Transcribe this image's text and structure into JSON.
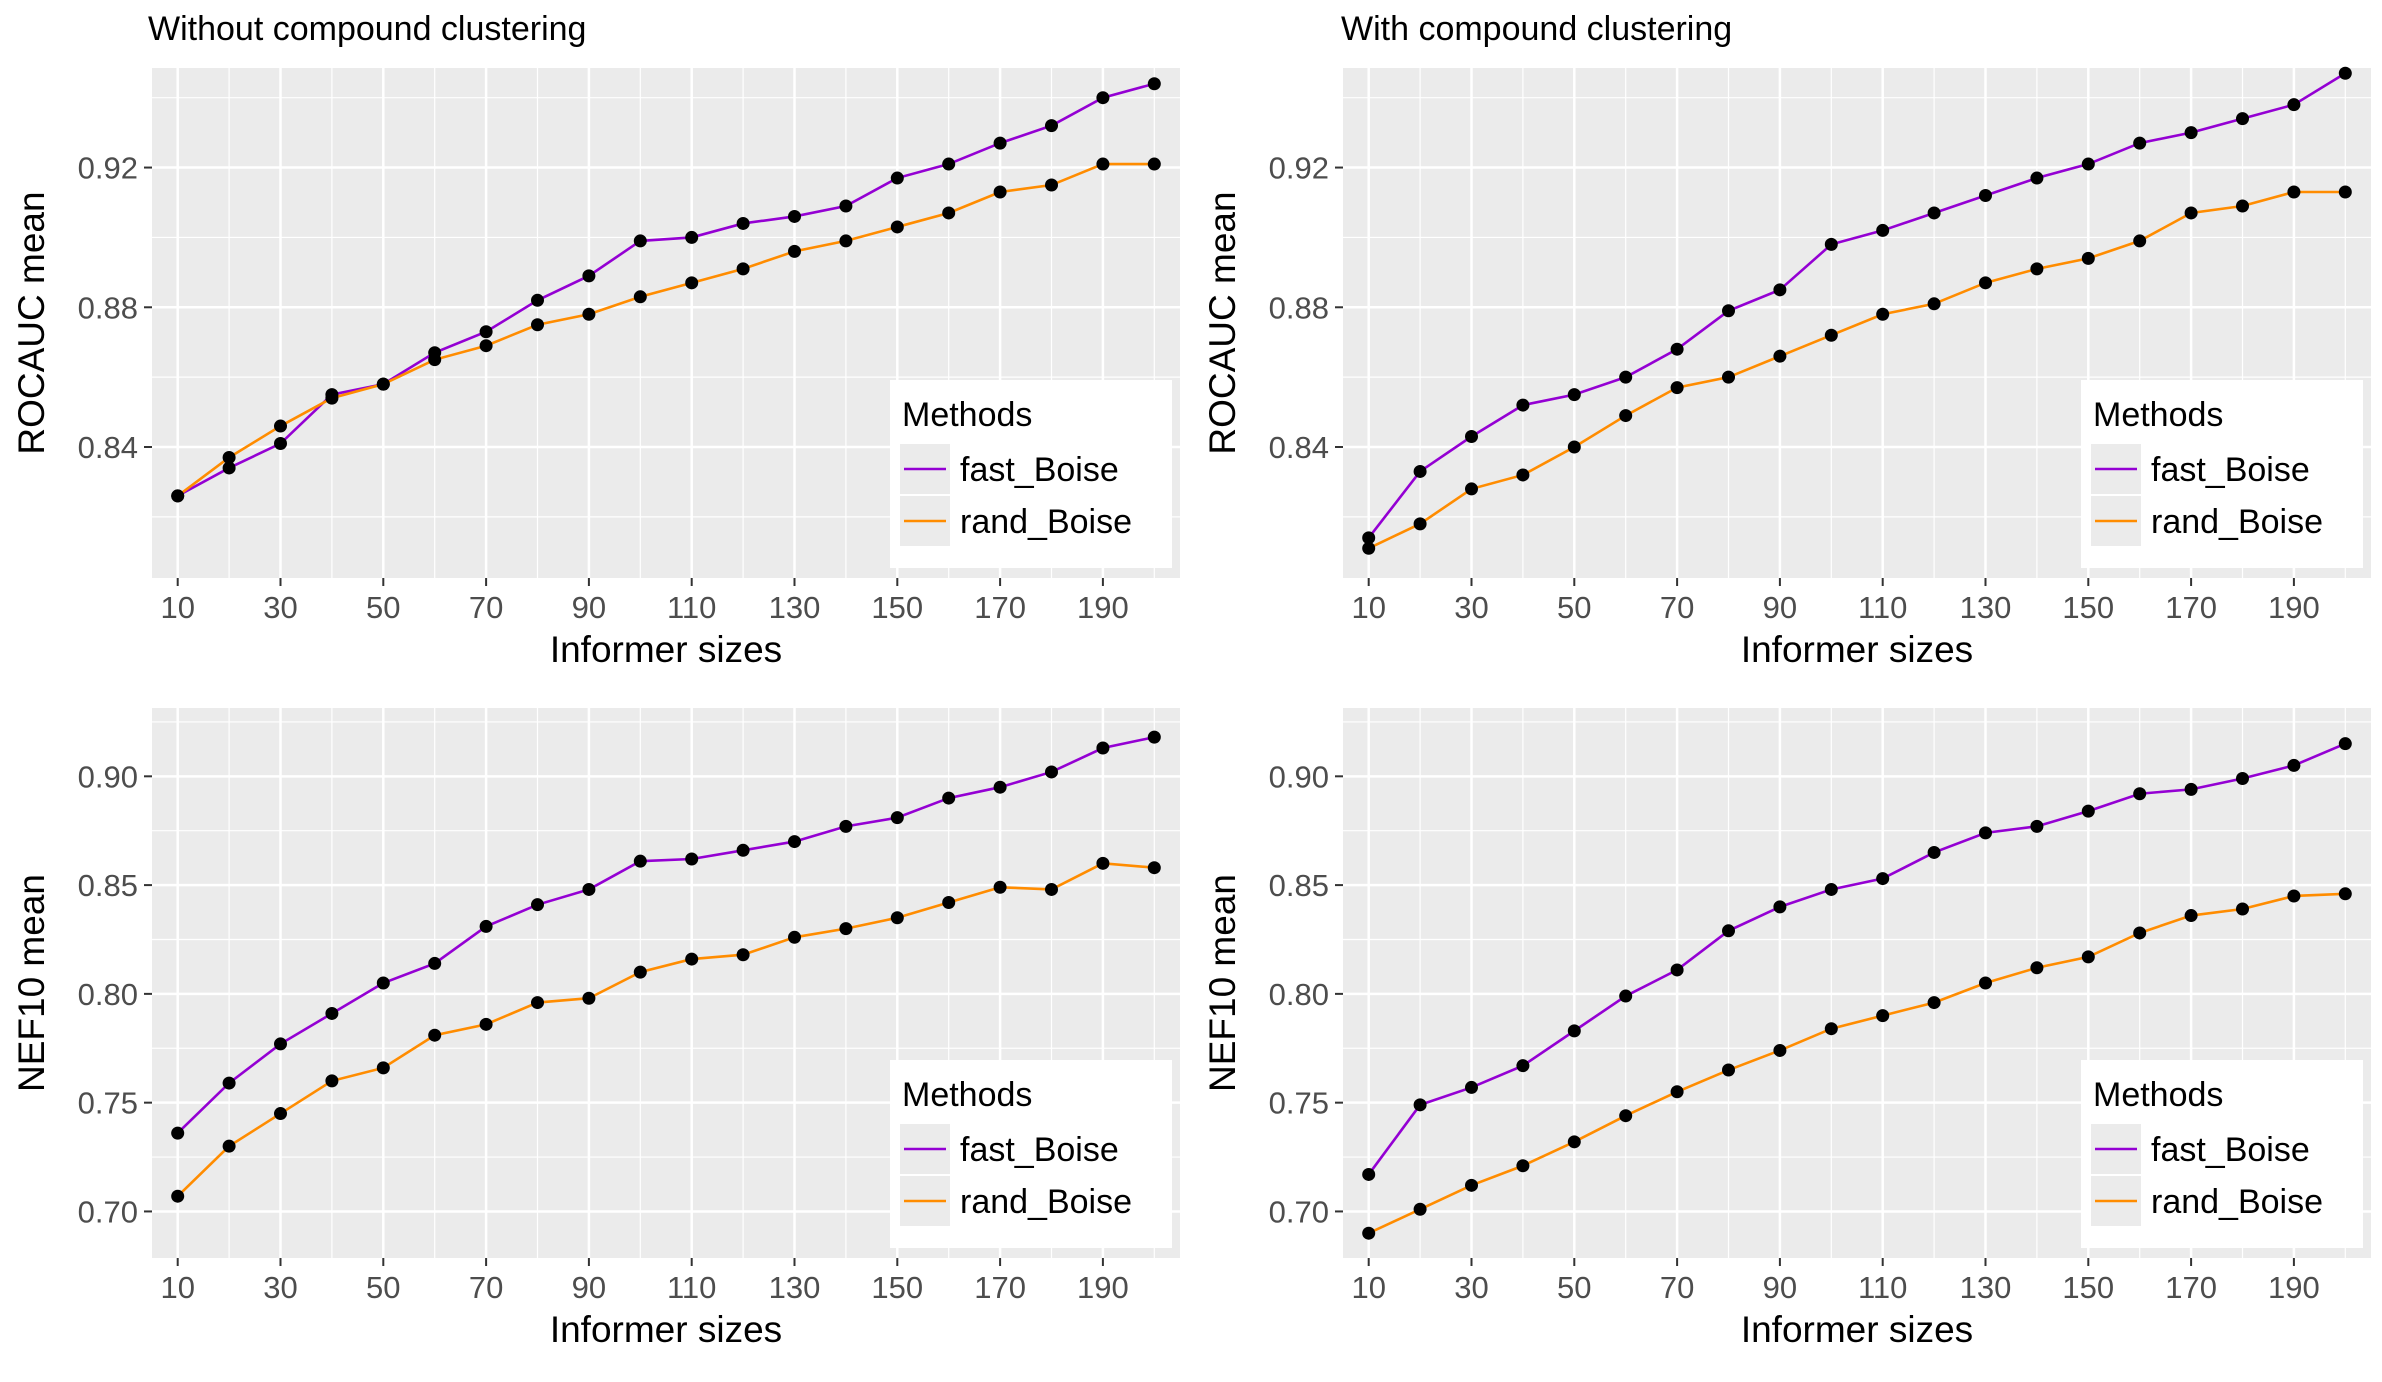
{
  "chart_data": [
    {
      "type": "line",
      "title": "Without compound clustering",
      "xlabel": "Informer sizes",
      "ylabel": "ROCAUC mean",
      "x": [
        10,
        20,
        30,
        40,
        50,
        60,
        70,
        80,
        90,
        100,
        110,
        120,
        130,
        140,
        150,
        160,
        170,
        180,
        190,
        200
      ],
      "x_ticks": [
        10,
        30,
        50,
        70,
        90,
        110,
        130,
        150,
        170,
        190
      ],
      "y_ticks": [
        "0.84",
        "0.88",
        "0.92"
      ],
      "ylim": [
        0.8025,
        0.9485
      ],
      "series": [
        {
          "name": "fast_Boise",
          "color": "#9400d3",
          "values": [
            0.826,
            0.834,
            0.841,
            0.855,
            0.858,
            0.867,
            0.873,
            0.882,
            0.889,
            0.899,
            0.9,
            0.904,
            0.906,
            0.909,
            0.917,
            0.921,
            0.927,
            0.932,
            0.94,
            0.944
          ]
        },
        {
          "name": "rand_Boise",
          "color": "#ff8c00",
          "values": [
            0.826,
            0.837,
            0.846,
            0.854,
            0.858,
            0.865,
            0.869,
            0.875,
            0.878,
            0.883,
            0.887,
            0.891,
            0.896,
            0.899,
            0.903,
            0.907,
            0.913,
            0.915,
            0.921,
            0.921
          ]
        }
      ],
      "legend": {
        "title": "Methods",
        "position": "bottom-right"
      },
      "grid": true
    },
    {
      "type": "line",
      "title": "With compound clustering",
      "xlabel": "Informer sizes",
      "ylabel": "ROCAUC mean",
      "x": [
        10,
        20,
        30,
        40,
        50,
        60,
        70,
        80,
        90,
        100,
        110,
        120,
        130,
        140,
        150,
        160,
        170,
        180,
        190,
        200
      ],
      "x_ticks": [
        10,
        30,
        50,
        70,
        90,
        110,
        130,
        150,
        170,
        190
      ],
      "y_ticks": [
        "0.84",
        "0.88",
        "0.92"
      ],
      "ylim": [
        0.8025,
        0.9485
      ],
      "series": [
        {
          "name": "fast_Boise",
          "color": "#9400d3",
          "values": [
            0.814,
            0.833,
            0.843,
            0.852,
            0.855,
            0.86,
            0.868,
            0.879,
            0.885,
            0.898,
            0.902,
            0.907,
            0.912,
            0.917,
            0.921,
            0.927,
            0.93,
            0.934,
            0.938,
            0.947
          ]
        },
        {
          "name": "rand_Boise",
          "color": "#ff8c00",
          "values": [
            0.811,
            0.818,
            0.828,
            0.832,
            0.84,
            0.849,
            0.857,
            0.86,
            0.866,
            0.872,
            0.878,
            0.881,
            0.887,
            0.891,
            0.894,
            0.899,
            0.907,
            0.909,
            0.913,
            0.913
          ]
        }
      ],
      "legend": {
        "title": "Methods",
        "position": "bottom-right"
      },
      "grid": true
    },
    {
      "type": "line",
      "title": "",
      "xlabel": "Informer sizes",
      "ylabel": "NEF10 mean",
      "x": [
        10,
        20,
        30,
        40,
        50,
        60,
        70,
        80,
        90,
        100,
        110,
        120,
        130,
        140,
        150,
        160,
        170,
        180,
        190,
        200
      ],
      "x_ticks": [
        10,
        30,
        50,
        70,
        90,
        110,
        130,
        150,
        170,
        190
      ],
      "y_ticks": [
        "0.70",
        "0.75",
        "0.80",
        "0.85",
        "0.90"
      ],
      "ylim": [
        0.6786,
        0.9314
      ],
      "series": [
        {
          "name": "fast_Boise",
          "color": "#9400d3",
          "values": [
            0.736,
            0.759,
            0.777,
            0.791,
            0.805,
            0.814,
            0.831,
            0.841,
            0.848,
            0.861,
            0.862,
            0.866,
            0.87,
            0.877,
            0.881,
            0.89,
            0.895,
            0.902,
            0.913,
            0.918
          ]
        },
        {
          "name": "rand_Boise",
          "color": "#ff8c00",
          "values": [
            0.707,
            0.73,
            0.745,
            0.76,
            0.766,
            0.781,
            0.786,
            0.796,
            0.798,
            0.81,
            0.816,
            0.818,
            0.826,
            0.83,
            0.835,
            0.842,
            0.849,
            0.848,
            0.86,
            0.858
          ]
        }
      ],
      "legend": {
        "title": "Methods",
        "position": "bottom-right"
      },
      "grid": true
    },
    {
      "type": "line",
      "title": "",
      "xlabel": "Informer sizes",
      "ylabel": "NEF10 mean",
      "x": [
        10,
        20,
        30,
        40,
        50,
        60,
        70,
        80,
        90,
        100,
        110,
        120,
        130,
        140,
        150,
        160,
        170,
        180,
        190,
        200
      ],
      "x_ticks": [
        10,
        30,
        50,
        70,
        90,
        110,
        130,
        150,
        170,
        190
      ],
      "y_ticks": [
        "0.70",
        "0.75",
        "0.80",
        "0.85",
        "0.90"
      ],
      "ylim": [
        0.6786,
        0.9314
      ],
      "series": [
        {
          "name": "fast_Boise",
          "color": "#9400d3",
          "values": [
            0.717,
            0.749,
            0.757,
            0.767,
            0.783,
            0.799,
            0.811,
            0.829,
            0.84,
            0.848,
            0.853,
            0.865,
            0.874,
            0.877,
            0.884,
            0.892,
            0.894,
            0.899,
            0.905,
            0.915
          ]
        },
        {
          "name": "rand_Boise",
          "color": "#ff8c00",
          "values": [
            0.69,
            0.701,
            0.712,
            0.721,
            0.732,
            0.744,
            0.755,
            0.765,
            0.774,
            0.784,
            0.79,
            0.796,
            0.805,
            0.812,
            0.817,
            0.828,
            0.836,
            0.839,
            0.845,
            0.846
          ]
        }
      ],
      "legend": {
        "title": "Methods",
        "position": "bottom-right"
      },
      "grid": true
    }
  ]
}
